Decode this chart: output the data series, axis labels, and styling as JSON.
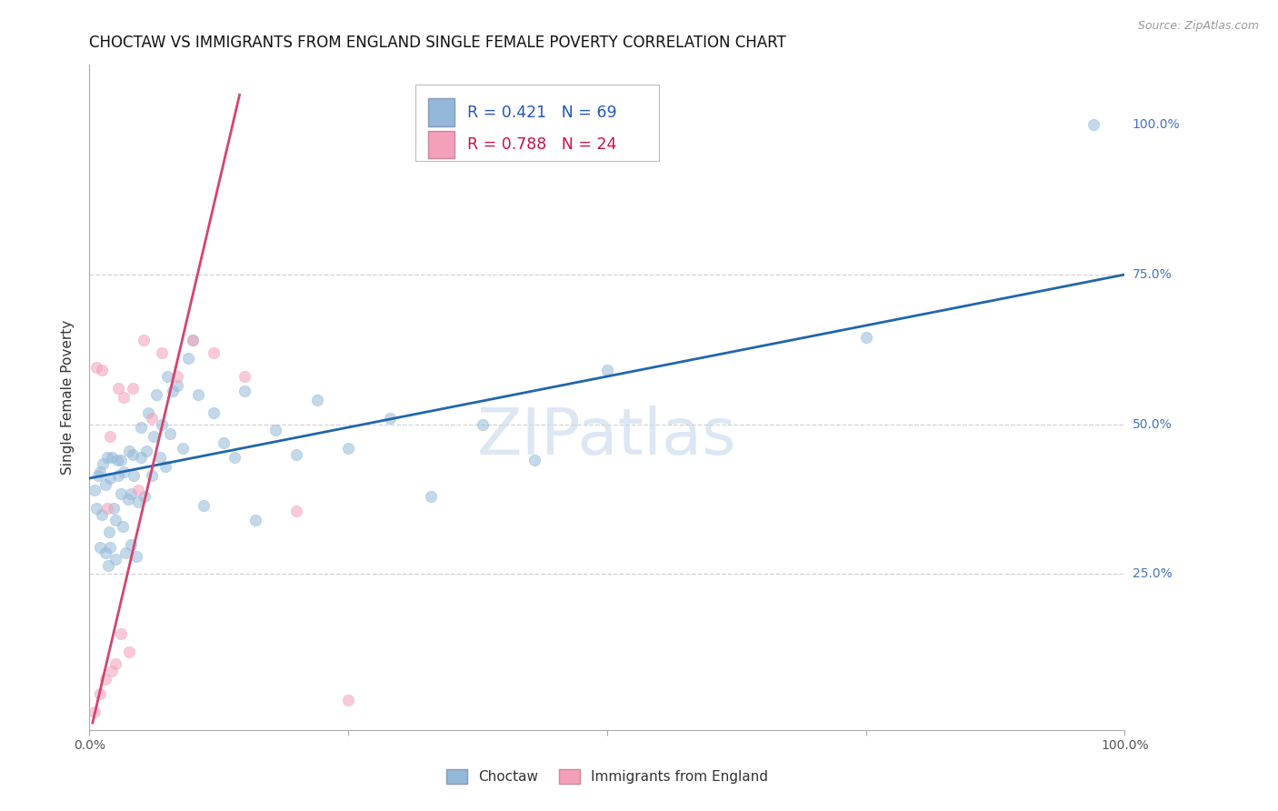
{
  "title": "CHOCTAW VS IMMIGRANTS FROM ENGLAND SINGLE FEMALE POVERTY CORRELATION CHART",
  "source": "Source: ZipAtlas.com",
  "ylabel": "Single Female Poverty",
  "xlim": [
    0.0,
    1.0
  ],
  "ylim": [
    -0.01,
    1.1
  ],
  "watermark": "ZIPatlas",
  "choctaw_x": [
    0.005,
    0.007,
    0.008,
    0.01,
    0.01,
    0.012,
    0.013,
    0.015,
    0.015,
    0.017,
    0.018,
    0.019,
    0.02,
    0.02,
    0.022,
    0.023,
    0.025,
    0.025,
    0.027,
    0.028,
    0.03,
    0.03,
    0.032,
    0.033,
    0.035,
    0.037,
    0.038,
    0.04,
    0.04,
    0.042,
    0.043,
    0.045,
    0.047,
    0.05,
    0.05,
    0.053,
    0.055,
    0.057,
    0.06,
    0.062,
    0.065,
    0.068,
    0.07,
    0.073,
    0.075,
    0.078,
    0.08,
    0.085,
    0.09,
    0.095,
    0.1,
    0.105,
    0.11,
    0.12,
    0.13,
    0.14,
    0.15,
    0.16,
    0.18,
    0.2,
    0.22,
    0.25,
    0.29,
    0.33,
    0.38,
    0.43,
    0.5,
    0.75,
    0.97
  ],
  "choctaw_y": [
    0.39,
    0.36,
    0.415,
    0.295,
    0.42,
    0.35,
    0.435,
    0.285,
    0.4,
    0.445,
    0.265,
    0.32,
    0.295,
    0.41,
    0.445,
    0.36,
    0.275,
    0.34,
    0.44,
    0.415,
    0.385,
    0.44,
    0.33,
    0.42,
    0.285,
    0.375,
    0.455,
    0.3,
    0.385,
    0.45,
    0.415,
    0.28,
    0.37,
    0.445,
    0.495,
    0.38,
    0.455,
    0.52,
    0.415,
    0.48,
    0.55,
    0.445,
    0.5,
    0.43,
    0.58,
    0.485,
    0.555,
    0.565,
    0.46,
    0.61,
    0.64,
    0.55,
    0.365,
    0.52,
    0.47,
    0.445,
    0.555,
    0.34,
    0.49,
    0.45,
    0.54,
    0.46,
    0.51,
    0.38,
    0.5,
    0.44,
    0.59,
    0.645,
    1.0
  ],
  "england_x": [
    0.005,
    0.007,
    0.01,
    0.012,
    0.015,
    0.017,
    0.02,
    0.022,
    0.025,
    0.028,
    0.03,
    0.033,
    0.038,
    0.042,
    0.047,
    0.052,
    0.06,
    0.07,
    0.085,
    0.1,
    0.12,
    0.15,
    0.2,
    0.25
  ],
  "england_y": [
    0.02,
    0.595,
    0.05,
    0.59,
    0.075,
    0.36,
    0.48,
    0.088,
    0.1,
    0.56,
    0.15,
    0.545,
    0.12,
    0.56,
    0.39,
    0.64,
    0.51,
    0.62,
    0.58,
    0.64,
    0.62,
    0.58,
    0.355,
    0.04
  ],
  "blue_line_x": [
    0.0,
    1.0
  ],
  "blue_line_y": [
    0.41,
    0.75
  ],
  "pink_line_x": [
    0.003,
    0.145
  ],
  "pink_line_y": [
    0.002,
    1.05
  ],
  "blue_color": "#93b8d8",
  "pink_color": "#f4a0b8",
  "blue_line_color": "#2166ac",
  "pink_line_color": "#d6436e",
  "grid_color": "#cccccc",
  "background_color": "#ffffff",
  "title_fontsize": 12,
  "axis_label_fontsize": 11,
  "tick_fontsize": 10,
  "watermark_color": "#c5d8ec",
  "marker_size": 80,
  "right_tick_color": "#4472C4"
}
